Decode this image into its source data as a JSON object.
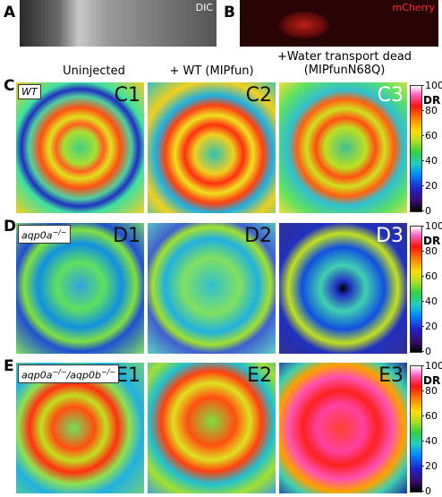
{
  "panels": [
    {
      "label": "A",
      "caption": "DIC"
    },
    {
      "label": "B",
      "caption": "mCherry"
    }
  ],
  "columns": [
    "Uninjected",
    "+ WT (MIPfun)",
    "+Water transport dead (MIPfunN68Q)"
  ],
  "colorbar": {
    "title": "DR",
    "range": [
      0,
      100
    ],
    "ticks": [
      0,
      20,
      40,
      60,
      80,
      100
    ]
  },
  "rows": [
    {
      "label": "C",
      "genotype": [
        {
          "text": "WT",
          "sup": ""
        }
      ],
      "cells": [
        "C1",
        "C2",
        "C3"
      ]
    },
    {
      "label": "D",
      "genotype": [
        {
          "text": "aqp0a",
          "sup": "−/−"
        }
      ],
      "cells": [
        "D1",
        "D2",
        "D3"
      ]
    },
    {
      "label": "E",
      "genotype": [
        {
          "text": "aqp0a",
          "sup": "−/−"
        },
        {
          "text": "/aqp0b",
          "sup": "−/−"
        }
      ],
      "cells": [
        "E1",
        "E2",
        "E3"
      ]
    }
  ]
}
